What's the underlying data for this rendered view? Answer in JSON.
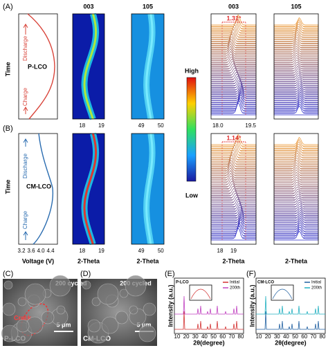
{
  "panel_a": {
    "label": "(A)",
    "y_label": "Time",
    "discharge": "Discharge",
    "sample": "P-LCO",
    "charge": "Charge"
  },
  "panel_b": {
    "label": "(B)",
    "y_label": "Time",
    "discharge": "Discharge",
    "sample": "CM-LCO",
    "charge": "Charge",
    "x_ticks": [
      "3.2",
      "3.6",
      "4.0",
      "4.4"
    ],
    "x_label": "Voltage (V)"
  },
  "heatmaps": [
    {
      "title": "003",
      "ticks_a": [
        "18",
        "19"
      ],
      "ticks_b": [
        "18",
        "19"
      ],
      "x_label": "2-Theta"
    },
    {
      "title": "105",
      "ticks_a": [
        "49",
        "50"
      ],
      "ticks_b": [
        "49",
        "50"
      ],
      "x_label": "2-Theta"
    }
  ],
  "colorbar": {
    "high": "High",
    "low": "Low"
  },
  "waterfalls": [
    {
      "title": "003",
      "shift_a": "1.31°",
      "ticks_a": [
        "18.0",
        "19.5"
      ],
      "shift_b": "1.14°",
      "ticks_b": [
        "18",
        "19"
      ],
      "x_label": "2-Theta"
    },
    {
      "title": "105",
      "x_label": "2-Theta"
    }
  ],
  "panel_c": {
    "label": "(C)",
    "caption": "200 cycled",
    "crack": "Crack",
    "scale": "5 μm",
    "sample": "P-LCO"
  },
  "panel_d": {
    "label": "(D)",
    "caption": "200 cycled",
    "scale": "5 μm",
    "sample": "CM-LCO"
  },
  "panel_e": {
    "label": "(E)",
    "sample": "P-LCO",
    "legend": [
      "Initial",
      "200th"
    ],
    "y_label": "Intensity (a.u.)",
    "x_label": "2θ(degree)",
    "x_ticks": [
      "10",
      "20",
      "30",
      "40",
      "50",
      "60",
      "70",
      "80"
    ]
  },
  "panel_f": {
    "label": "(F)",
    "sample": "CM-LCO",
    "legend": [
      "Initial",
      "200th"
    ],
    "y_label": "Intensity (a.u.)",
    "x_label": "2θ(degree)",
    "x_ticks": [
      "10",
      "20",
      "30",
      "40",
      "50",
      "60",
      "70",
      "80"
    ]
  }
}
